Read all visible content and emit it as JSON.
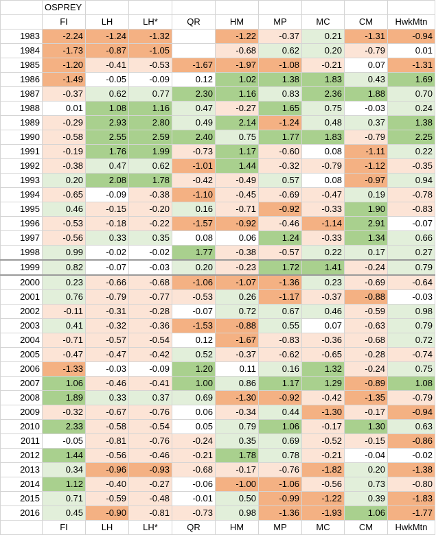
{
  "sheet": {
    "title": "OSPREY",
    "columns": [
      "FI",
      "LH",
      "LH*",
      "QR",
      "HM",
      "MP",
      "MC",
      "CM",
      "HwkMtn"
    ],
    "colors": {
      "strong_neg": "#f4b183",
      "light_neg": "#fce4d6",
      "light_pos": "#e2efda",
      "strong_pos": "#a9d08e",
      "neutral": "#ffffff"
    },
    "rows": [
      {
        "year": "1983",
        "values": [
          "-2.24",
          "-1.24",
          "-1.32",
          "",
          "-1.22",
          "-0.37",
          "0.21",
          "-1.31",
          "-0.94"
        ]
      },
      {
        "year": "1984",
        "values": [
          "-1.73",
          "-0.87",
          "-1.05",
          "",
          "-0.68",
          "0.62",
          "0.20",
          "-0.79",
          "0.01"
        ]
      },
      {
        "year": "1985",
        "values": [
          "-1.20",
          "-0.41",
          "-0.53",
          "-1.67",
          "-1.97",
          "-1.08",
          "-0.21",
          "0.07",
          "-1.31"
        ]
      },
      {
        "year": "1986",
        "values": [
          "-1.49",
          "-0.05",
          "-0.09",
          "0.12",
          "1.02",
          "1.38",
          "1.83",
          "0.43",
          "1.69"
        ]
      },
      {
        "year": "1987",
        "values": [
          "-0.37",
          "0.62",
          "0.77",
          "2.30",
          "1.16",
          "0.83",
          "2.36",
          "1.88",
          "0.70"
        ]
      },
      {
        "year": "1988",
        "values": [
          "0.01",
          "1.08",
          "1.16",
          "0.47",
          "-0.27",
          "1.65",
          "0.75",
          "-0.03",
          "0.24"
        ]
      },
      {
        "year": "1989",
        "values": [
          "-0.29",
          "2.93",
          "2.80",
          "0.49",
          "2.14",
          "-1.24",
          "0.48",
          "0.37",
          "1.38"
        ]
      },
      {
        "year": "1990",
        "values": [
          "-0.58",
          "2.55",
          "2.59",
          "2.40",
          "0.75",
          "1.77",
          "1.83",
          "-0.79",
          "2.25"
        ]
      },
      {
        "year": "1991",
        "values": [
          "-0.19",
          "1.76",
          "1.99",
          "-0.73",
          "1.17",
          "-0.60",
          "0.08",
          "-1.11",
          "0.22"
        ]
      },
      {
        "year": "1992",
        "values": [
          "-0.38",
          "0.47",
          "0.62",
          "-1.01",
          "1.44",
          "-0.32",
          "-0.79",
          "-1.12",
          "-0.35"
        ]
      },
      {
        "year": "1993",
        "values": [
          "0.20",
          "2.08",
          "1.78",
          "-0.42",
          "-0.49",
          "0.57",
          "0.08",
          "-0.97",
          "0.94"
        ]
      },
      {
        "year": "1994",
        "values": [
          "-0.65",
          "-0.09",
          "-0.38",
          "-1.10",
          "-0.45",
          "-0.69",
          "-0.47",
          "0.19",
          "-0.78"
        ]
      },
      {
        "year": "1995",
        "values": [
          "0.46",
          "-0.15",
          "-0.20",
          "0.16",
          "-0.71",
          "-0.92",
          "-0.33",
          "1.90",
          "-0.83"
        ]
      },
      {
        "year": "1996",
        "values": [
          "-0.53",
          "-0.18",
          "-0.22",
          "-1.57",
          "-0.92",
          "-0.46",
          "-1.14",
          "2.91",
          "-0.07"
        ]
      },
      {
        "year": "1997",
        "values": [
          "-0.56",
          "0.33",
          "0.35",
          "0.08",
          "0.06",
          "1.24",
          "-0.33",
          "1.34",
          "0.66"
        ]
      },
      {
        "year": "1998",
        "values": [
          "0.99",
          "-0.02",
          "-0.02",
          "1.77",
          "-0.38",
          "-0.57",
          "0.22",
          "0.17",
          "0.27"
        ]
      },
      {
        "year": "1999",
        "values": [
          "0.82",
          "-0.07",
          "-0.03",
          "0.20",
          "-0.23",
          "1.72",
          "1.41",
          "-0.24",
          "0.79"
        ]
      },
      {
        "year": "2000",
        "values": [
          "0.23",
          "-0.66",
          "-0.68",
          "-1.06",
          "-1.07",
          "-1.36",
          "0.23",
          "-0.69",
          "-0.64"
        ]
      },
      {
        "year": "2001",
        "values": [
          "0.76",
          "-0.79",
          "-0.77",
          "-0.53",
          "0.26",
          "-1.17",
          "-0.37",
          "-0.88",
          "-0.03"
        ]
      },
      {
        "year": "2002",
        "values": [
          "-0.11",
          "-0.31",
          "-0.28",
          "-0.07",
          "0.72",
          "0.67",
          "0.46",
          "-0.59",
          "0.98"
        ]
      },
      {
        "year": "2003",
        "values": [
          "0.41",
          "-0.32",
          "-0.36",
          "-1.53",
          "-0.88",
          "0.55",
          "0.07",
          "-0.63",
          "0.79"
        ]
      },
      {
        "year": "2004",
        "values": [
          "-0.71",
          "-0.57",
          "-0.54",
          "0.12",
          "-1.67",
          "-0.83",
          "-0.36",
          "-0.68",
          "0.72"
        ]
      },
      {
        "year": "2005",
        "values": [
          "-0.47",
          "-0.47",
          "-0.42",
          "0.52",
          "-0.37",
          "-0.62",
          "-0.65",
          "-0.28",
          "-0.74"
        ]
      },
      {
        "year": "2006",
        "values": [
          "-1.33",
          "-0.03",
          "-0.09",
          "1.20",
          "0.11",
          "0.16",
          "1.32",
          "-0.24",
          "0.75"
        ]
      },
      {
        "year": "2007",
        "values": [
          "1.06",
          "-0.46",
          "-0.41",
          "1.00",
          "0.86",
          "1.17",
          "1.29",
          "-0.89",
          "1.08"
        ]
      },
      {
        "year": "2008",
        "values": [
          "1.89",
          "0.33",
          "0.37",
          "0.69",
          "-1.30",
          "-0.92",
          "-0.42",
          "-1.35",
          "-0.79"
        ]
      },
      {
        "year": "2009",
        "values": [
          "-0.32",
          "-0.67",
          "-0.76",
          "0.06",
          "-0.34",
          "0.44",
          "-1.30",
          "-0.17",
          "-0.94"
        ]
      },
      {
        "year": "2010",
        "values": [
          "2.33",
          "-0.58",
          "-0.54",
          "0.05",
          "0.79",
          "1.06",
          "-0.17",
          "1.30",
          "0.63"
        ]
      },
      {
        "year": "2011",
        "values": [
          "-0.05",
          "-0.81",
          "-0.76",
          "-0.24",
          "0.35",
          "0.69",
          "-0.52",
          "-0.15",
          "-0.86"
        ]
      },
      {
        "year": "2012",
        "values": [
          "1.44",
          "-0.56",
          "-0.46",
          "-0.21",
          "1.78",
          "0.78",
          "-0.21",
          "-0.04",
          "-0.02"
        ]
      },
      {
        "year": "2013",
        "values": [
          "0.34",
          "-0.96",
          "-0.93",
          "-0.68",
          "-0.17",
          "-0.76",
          "-1.82",
          "0.20",
          "-1.38"
        ]
      },
      {
        "year": "2014",
        "values": [
          "1.12",
          "-0.40",
          "-0.27",
          "-0.06",
          "-1.00",
          "-1.06",
          "-0.56",
          "0.73",
          "-0.80"
        ]
      },
      {
        "year": "2015",
        "values": [
          "0.71",
          "-0.59",
          "-0.48",
          "-0.01",
          "0.50",
          "-0.99",
          "-1.22",
          "0.39",
          "-1.83"
        ]
      },
      {
        "year": "2016",
        "values": [
          "0.45",
          "-0.90",
          "-0.81",
          "-0.73",
          "0.98",
          "-1.36",
          "-1.93",
          "1.06",
          "-1.77"
        ]
      }
    ]
  }
}
